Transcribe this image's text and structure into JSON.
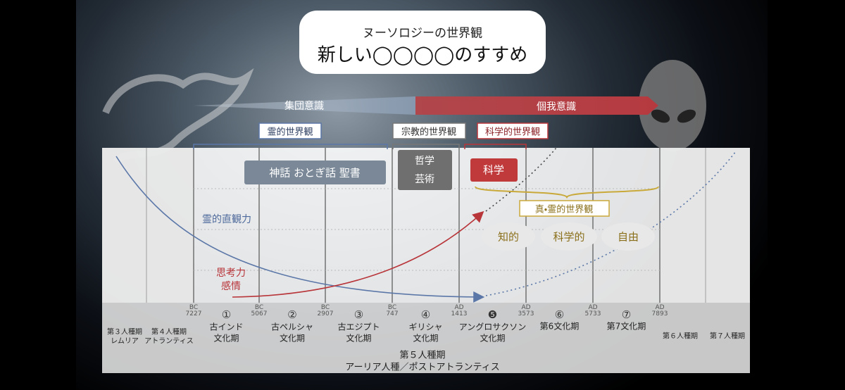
{
  "title": {
    "line1": "ヌーソロジーの世界観",
    "line2": "新しい◯◯◯◯のすすめ"
  },
  "consciousness": [
    "集団意識",
    "個我意識"
  ],
  "worldviews": [
    "霊的世界観",
    "宗教的世界観",
    "科学的世界観"
  ],
  "boxes": {
    "myth": "神話 おとぎ話 聖書",
    "philosophy": [
      "哲学",
      "芸術"
    ],
    "science": "科学"
  },
  "true_view": {
    "label": "真・霊的世界観",
    "items": [
      "知的",
      "科学的",
      "自由"
    ]
  },
  "curves": {
    "intuition": "霊的直観力",
    "thinking": [
      "思考力",
      "感情"
    ]
  },
  "dates": [
    {
      "era": "BC",
      "year": "7227"
    },
    {
      "era": "BC",
      "year": "5067"
    },
    {
      "era": "BC",
      "year": "2907"
    },
    {
      "era": "BC",
      "year": "747"
    },
    {
      "era": "AD",
      "year": "1413"
    },
    {
      "era": "AD",
      "year": "3573"
    },
    {
      "era": "AD",
      "year": "5733"
    },
    {
      "era": "AD",
      "year": "7893"
    }
  ],
  "periods": [
    {
      "num": "①",
      "lines": [
        "古インド",
        "文化期"
      ]
    },
    {
      "num": "②",
      "lines": [
        "古ペルシャ",
        "文化期"
      ]
    },
    {
      "num": "③",
      "lines": [
        "古エジプト",
        "文化期"
      ]
    },
    {
      "num": "④",
      "lines": [
        "ギリシャ",
        "文化期"
      ]
    },
    {
      "num": "❺",
      "lines": [
        "アングロサクソン",
        "文化期"
      ]
    },
    {
      "num": "⑥",
      "lines": [
        "第6文化期"
      ]
    },
    {
      "num": "⑦",
      "lines": [
        "第7文化期"
      ]
    }
  ],
  "races": [
    {
      "lines": [
        "第３人種期",
        "レムリア"
      ]
    },
    {
      "lines": [
        "第４人種期",
        "アトランティス"
      ]
    },
    {
      "lines": [
        "第６人種期"
      ]
    },
    {
      "lines": [
        "第７人種期"
      ]
    }
  ],
  "fifth_race": {
    "title": "第５人種期",
    "subtitle": "アーリア人種／ポストアトランティス"
  }
}
